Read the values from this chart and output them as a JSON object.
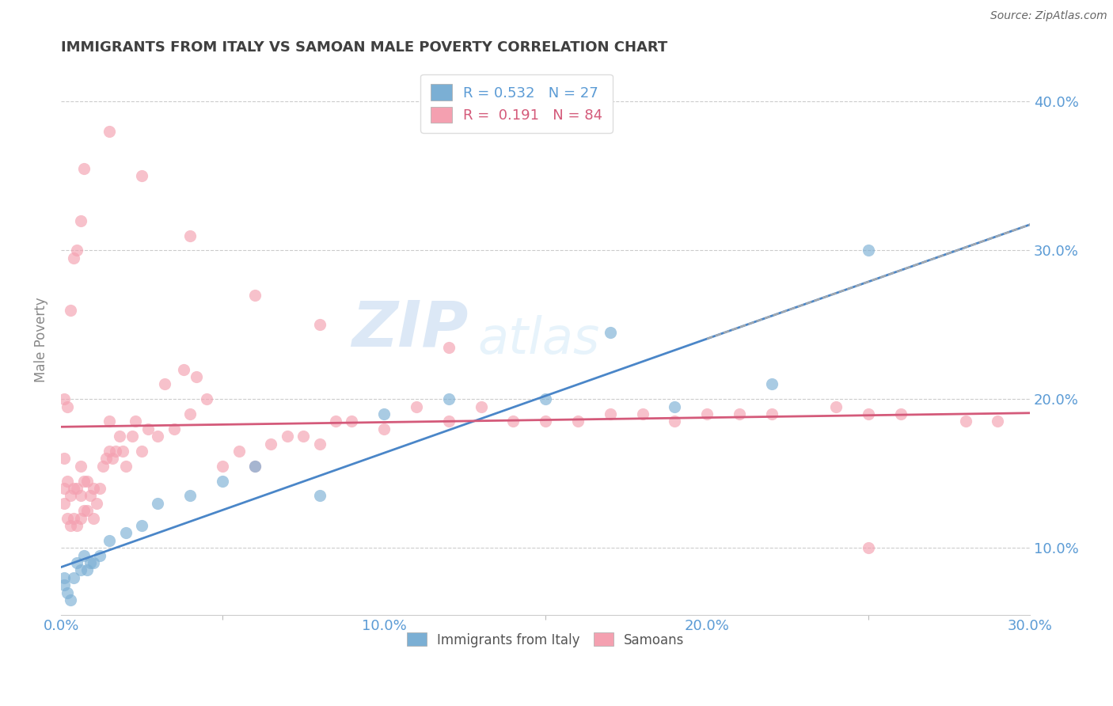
{
  "title": "IMMIGRANTS FROM ITALY VS SAMOAN MALE POVERTY CORRELATION CHART",
  "source": "Source: ZipAtlas.com",
  "ylabel": "Male Poverty",
  "legend_label1": "Immigrants from Italy",
  "legend_label2": "Samoans",
  "R1": "0.532",
  "N1": "27",
  "R2": "0.191",
  "N2": "84",
  "xlim": [
    0.0,
    0.3
  ],
  "ylim": [
    0.055,
    0.425
  ],
  "xticks": [
    0.0,
    0.1,
    0.2,
    0.3
  ],
  "yticks": [
    0.1,
    0.2,
    0.3,
    0.4
  ],
  "color_blue": "#7bafd4",
  "color_pink": "#f4a0b0",
  "color_blue_line": "#4a86c8",
  "color_pink_line": "#d45a7a",
  "color_axis_labels": "#5b9bd5",
  "color_title": "#404040",
  "background": "#ffffff",
  "watermark_ZIP": "ZIP",
  "watermark_atlas": "atlas",
  "blue_x": [
    0.001,
    0.001,
    0.002,
    0.003,
    0.004,
    0.005,
    0.006,
    0.007,
    0.008,
    0.009,
    0.01,
    0.012,
    0.015,
    0.02,
    0.025,
    0.03,
    0.04,
    0.05,
    0.06,
    0.08,
    0.1,
    0.12,
    0.15,
    0.17,
    0.19,
    0.22,
    0.25
  ],
  "blue_y": [
    0.075,
    0.08,
    0.07,
    0.065,
    0.08,
    0.09,
    0.085,
    0.095,
    0.085,
    0.09,
    0.09,
    0.095,
    0.105,
    0.11,
    0.115,
    0.13,
    0.135,
    0.145,
    0.155,
    0.135,
    0.19,
    0.2,
    0.2,
    0.245,
    0.195,
    0.21,
    0.3
  ],
  "pink_x": [
    0.001,
    0.001,
    0.001,
    0.002,
    0.002,
    0.003,
    0.003,
    0.004,
    0.004,
    0.005,
    0.005,
    0.006,
    0.006,
    0.006,
    0.007,
    0.007,
    0.008,
    0.008,
    0.009,
    0.01,
    0.01,
    0.011,
    0.012,
    0.013,
    0.014,
    0.015,
    0.015,
    0.016,
    0.017,
    0.018,
    0.019,
    0.02,
    0.022,
    0.023,
    0.025,
    0.027,
    0.03,
    0.032,
    0.035,
    0.038,
    0.04,
    0.042,
    0.045,
    0.05,
    0.055,
    0.06,
    0.065,
    0.07,
    0.075,
    0.08,
    0.085,
    0.09,
    0.1,
    0.11,
    0.12,
    0.13,
    0.14,
    0.15,
    0.16,
    0.17,
    0.18,
    0.19,
    0.2,
    0.21,
    0.22,
    0.24,
    0.25,
    0.26,
    0.28,
    0.29,
    0.001,
    0.002,
    0.003,
    0.004,
    0.005,
    0.006,
    0.007,
    0.015,
    0.025,
    0.04,
    0.06,
    0.08,
    0.12,
    0.25
  ],
  "pink_y": [
    0.13,
    0.14,
    0.16,
    0.12,
    0.145,
    0.115,
    0.135,
    0.12,
    0.14,
    0.115,
    0.14,
    0.12,
    0.135,
    0.155,
    0.125,
    0.145,
    0.125,
    0.145,
    0.135,
    0.12,
    0.14,
    0.13,
    0.14,
    0.155,
    0.16,
    0.165,
    0.185,
    0.16,
    0.165,
    0.175,
    0.165,
    0.155,
    0.175,
    0.185,
    0.165,
    0.18,
    0.175,
    0.21,
    0.18,
    0.22,
    0.19,
    0.215,
    0.2,
    0.155,
    0.165,
    0.155,
    0.17,
    0.175,
    0.175,
    0.17,
    0.185,
    0.185,
    0.18,
    0.195,
    0.185,
    0.195,
    0.185,
    0.185,
    0.185,
    0.19,
    0.19,
    0.185,
    0.19,
    0.19,
    0.19,
    0.195,
    0.19,
    0.19,
    0.185,
    0.185,
    0.2,
    0.195,
    0.26,
    0.295,
    0.3,
    0.32,
    0.355,
    0.38,
    0.35,
    0.31,
    0.27,
    0.25,
    0.235,
    0.1
  ]
}
